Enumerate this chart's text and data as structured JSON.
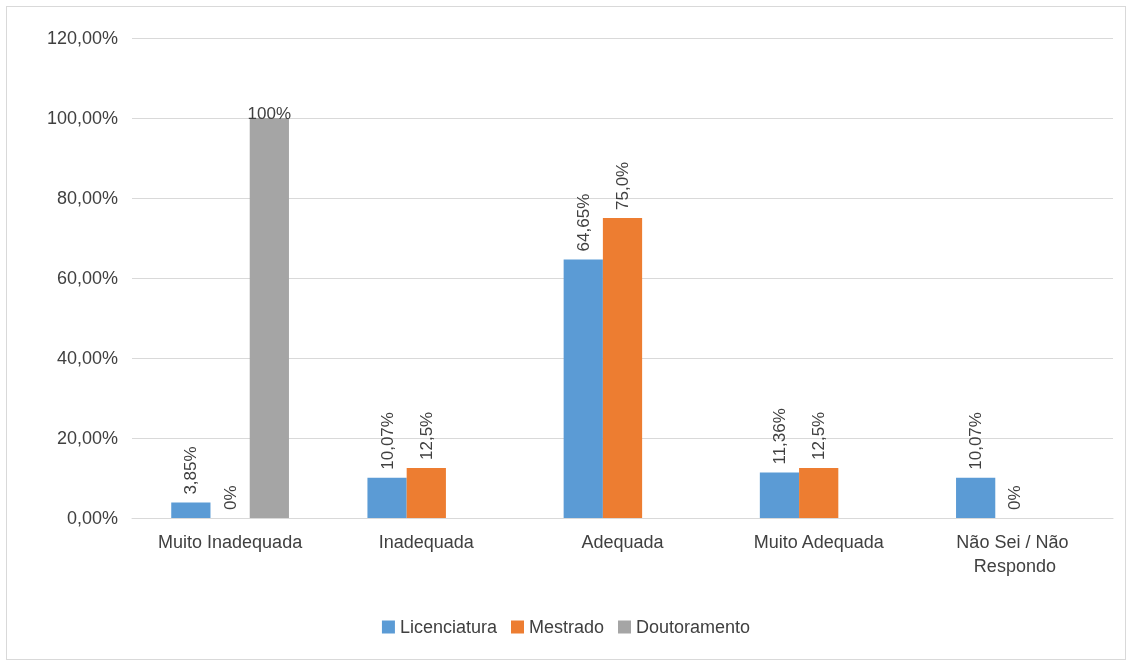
{
  "chart_data": {
    "type": "bar",
    "categories": [
      "Muito Inadequada",
      "Inadequada",
      "Adequada",
      "Muito Adequada",
      "Não Sei / Não Respondo"
    ],
    "series": [
      {
        "name": "Licenciatura",
        "color": "#5b9bd5",
        "values": [
          3.85,
          10.07,
          64.65,
          11.36,
          10.07
        ],
        "value_labels": [
          "3,85%",
          "10,07%",
          "64,65%",
          "11,36%",
          "10,07%"
        ]
      },
      {
        "name": "Mestrado",
        "color": "#ed7d31",
        "values": [
          0,
          12.5,
          75.0,
          12.5,
          0
        ],
        "value_labels": [
          "0%",
          "12,5%",
          "75,0%",
          "12,5%",
          "0%"
        ]
      },
      {
        "name": "Doutoramento",
        "color": "#a5a5a5",
        "values": [
          100,
          null,
          null,
          null,
          null
        ],
        "value_labels": [
          "100%",
          null,
          null,
          null,
          null
        ]
      }
    ],
    "ylim": [
      0,
      120
    ],
    "yticks": [
      {
        "value": 0,
        "label": "0,00%"
      },
      {
        "value": 20,
        "label": "20,00%"
      },
      {
        "value": 40,
        "label": "40,00%"
      },
      {
        "value": 60,
        "label": "60,00%"
      },
      {
        "value": 80,
        "label": "80,00%"
      },
      {
        "value": 100,
        "label": "100,00%"
      },
      {
        "value": 120,
        "label": "120,00%"
      }
    ],
    "grid": "y",
    "legend": "bottom"
  }
}
